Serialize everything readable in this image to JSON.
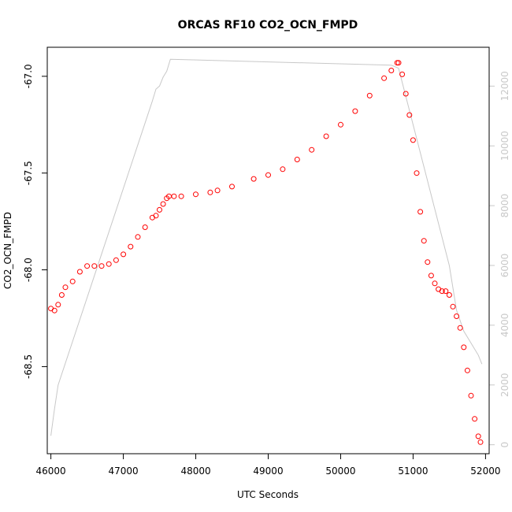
{
  "chart_data": {
    "type": "scatter",
    "title": "ORCAS RF10 CO2_OCN_FMPD",
    "xlabel": "UTC Seconds",
    "ylabel": "CO2_OCN_FMPD",
    "xlim": [
      45950,
      52050
    ],
    "ylim": [
      -68.95,
      -66.85
    ],
    "xticks": [
      46000,
      47000,
      48000,
      49000,
      50000,
      51000,
      52000
    ],
    "xtick_labels": [
      "46000",
      "47000",
      "48000",
      "49000",
      "50000",
      "51000",
      "52000"
    ],
    "yticks": [
      -68.5,
      -68.0,
      -67.5,
      -67.0
    ],
    "ytick_labels": [
      "-68.5",
      "-68.0",
      "-67.5",
      "-67.0"
    ],
    "y2lim": [
      -300,
      13300
    ],
    "y2ticks": [
      0,
      2000,
      4000,
      6000,
      8000,
      10000,
      12000
    ],
    "y2tick_labels": [
      "0",
      "2000",
      "4000",
      "6000",
      "8000",
      "10000",
      "12000"
    ],
    "series": [
      {
        "name": "CO2_OCN_FMPD",
        "style": "points",
        "color": "#ff0000",
        "x": [
          46000,
          46050,
          46100,
          46150,
          46200,
          46300,
          46400,
          46500,
          46600,
          46700,
          46800,
          46900,
          47000,
          47100,
          47200,
          47300,
          47400,
          47450,
          47500,
          47550,
          47600,
          47630,
          47700,
          47800,
          48000,
          48200,
          48300,
          48500,
          48800,
          49000,
          49200,
          49400,
          49600,
          49800,
          50000,
          50200,
          50400,
          50600,
          50700,
          50780,
          50800,
          50850,
          50900,
          50950,
          51000,
          51050,
          51100,
          51150,
          51200,
          51250,
          51300,
          51350,
          51400,
          51450,
          51500,
          51550,
          51600,
          51650,
          51700,
          51750,
          51800,
          51850,
          51900,
          51930
        ],
        "y": [
          -68.2,
          -68.21,
          -68.18,
          -68.13,
          -68.09,
          -68.06,
          -68.01,
          -67.98,
          -67.98,
          -67.98,
          -67.97,
          -67.95,
          -67.92,
          -67.88,
          -67.83,
          -67.78,
          -67.73,
          -67.72,
          -67.69,
          -67.66,
          -67.63,
          -67.62,
          -67.62,
          -67.62,
          -67.61,
          -67.6,
          -67.59,
          -67.57,
          -67.53,
          -67.51,
          -67.48,
          -67.43,
          -67.38,
          -67.31,
          -67.25,
          -67.18,
          -67.1,
          -67.01,
          -66.97,
          -66.93,
          -66.93,
          -66.99,
          -67.09,
          -67.2,
          -67.33,
          -67.5,
          -67.7,
          -67.85,
          -67.96,
          -68.03,
          -68.07,
          -68.1,
          -68.11,
          -68.11,
          -68.13,
          -68.19,
          -68.24,
          -68.3,
          -68.4,
          -68.52,
          -68.65,
          -68.77,
          -68.86,
          -68.89
        ]
      },
      {
        "name": "altitude",
        "style": "line",
        "color": "#c8c8c8",
        "axis": "right",
        "x": [
          46000,
          46050,
          46100,
          47400,
          47450,
          47500,
          47550,
          47600,
          47650,
          50700,
          50800,
          51500,
          51600,
          51700,
          51900,
          51950
        ],
        "y": [
          300,
          1200,
          2000,
          11500,
          11900,
          12000,
          12300,
          12500,
          12900,
          12700,
          12600,
          6000,
          4500,
          3800,
          3000,
          2700
        ]
      }
    ]
  }
}
